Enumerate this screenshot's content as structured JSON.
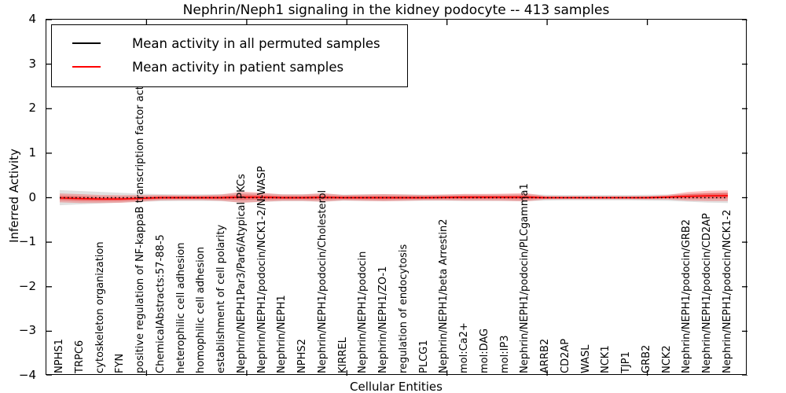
{
  "figure": {
    "title": "Nephrin/Neph1 signaling in the kidney podocyte -- 413 samples",
    "xlabel": "Cellular Entities",
    "ylabel": "Inferred Activity"
  },
  "legend": {
    "entries": [
      {
        "label": "Mean activity in all permuted samples",
        "color": "#000000"
      },
      {
        "label": "Mean activity in patient samples",
        "color": "#ff0000"
      }
    ]
  },
  "chart_data": {
    "type": "line",
    "title": "Nephrin/Neph1 signaling in the kidney podocyte -- 413 samples",
    "xlabel": "Cellular Entities",
    "ylabel": "Inferred Activity",
    "ylim": [
      -4,
      4
    ],
    "ytick_labels": [
      "4",
      "3",
      "2",
      "1",
      "0",
      "−1",
      "−2",
      "−3",
      "−4"
    ],
    "ytick_values": [
      4,
      3,
      2,
      1,
      0,
      -1,
      -2,
      -3,
      -4
    ],
    "grid": false,
    "legend_position": "upper left",
    "categories": [
      "NPHS1",
      "TRPC6",
      "cytoskeleton organization",
      "FYN",
      "positive regulation of NF-kappaB transcription factor activity",
      "ChemicalAbstracts:57-88-5",
      "heterophilic cell adhesion",
      "homophilic cell adhesion",
      "establishment of cell polarity",
      "Nephrin/NEPH1Par3/Par6/Atypical PKCs",
      "Nephrin/NEPH1/podocin/NCK1-2/N-WASP",
      "Nephrin/NEPH1",
      "NPHS2",
      "Nephrin/NEPH1/podocin/Cholesterol",
      "KIRREL",
      "Nephrin/NEPH1/podocin",
      "Nephrin/NEPH1/ZO-1",
      "regulation of endocytosis",
      "PLCG1",
      "Nephrin/NEPH1/beta Arrestin2",
      "mol:Ca2+",
      "mol:DAG",
      "mol:IP3",
      "Nephrin/NEPH1/podocin/PLCgamma1",
      "ARRB2",
      "CD2AP",
      "WASL",
      "NCK1",
      "TJP1",
      "GRB2",
      "NCK2",
      "Nephrin/NEPH1/podocin/GRB2",
      "Nephrin/NEPH1/podocin/CD2AP",
      "Nephrin/NEPH1/podocin/NCK1-2"
    ],
    "series": [
      {
        "name": "Mean activity in all permuted samples",
        "color": "#000000",
        "style": "dotted",
        "values": [
          0,
          0,
          0,
          0,
          0,
          0,
          0,
          0,
          0,
          0,
          0,
          0,
          0,
          0,
          0,
          0,
          0,
          0,
          0,
          0,
          0,
          0,
          0,
          0,
          0,
          0,
          0,
          0,
          0,
          0,
          0,
          0,
          0,
          0
        ],
        "band_halfwidth": [
          0.17,
          0.15,
          0.13,
          0.11,
          0.09,
          0.08,
          0.075,
          0.075,
          0.08,
          0.11,
          0.095,
          0.08,
          0.08,
          0.09,
          0.07,
          0.075,
          0.08,
          0.075,
          0.07,
          0.07,
          0.075,
          0.075,
          0.075,
          0.08,
          0.065,
          0.06,
          0.06,
          0.06,
          0.06,
          0.065,
          0.07,
          0.09,
          0.11,
          0.12
        ],
        "band_color": "#c8c8c8"
      },
      {
        "name": "Mean activity in patient samples",
        "color": "#ff0000",
        "style": "solid",
        "values": [
          -0.005,
          -0.02,
          -0.03,
          -0.03,
          -0.015,
          0,
          0,
          0,
          0,
          0.01,
          0.01,
          0,
          0,
          0.005,
          0,
          0,
          0,
          0,
          0,
          0.005,
          0.01,
          0.01,
          0.01,
          0.01,
          0,
          0,
          0,
          0,
          0,
          0,
          0.01,
          0.03,
          0.04,
          0.045
        ],
        "band_halfwidth": [
          0.1,
          0.1,
          0.09,
          0.085,
          0.075,
          0.06,
          0.055,
          0.055,
          0.07,
          0.125,
          0.1,
          0.07,
          0.07,
          0.095,
          0.06,
          0.07,
          0.08,
          0.07,
          0.06,
          0.065,
          0.075,
          0.075,
          0.08,
          0.095,
          0.04,
          0.035,
          0.035,
          0.035,
          0.035,
          0.04,
          0.05,
          0.095,
          0.115,
          0.12
        ],
        "band_color": "#ff0000"
      }
    ]
  }
}
